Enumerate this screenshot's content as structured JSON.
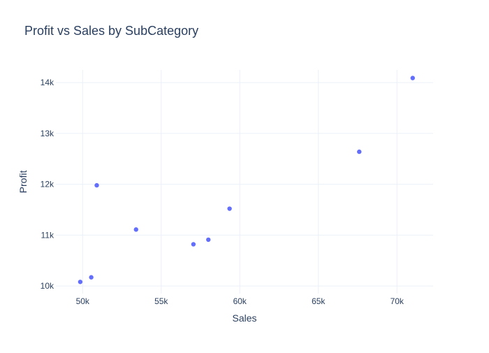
{
  "chart_data": {
    "type": "scatter",
    "title": "Profit vs Sales by SubCategory",
    "xlabel": "Sales",
    "ylabel": "Profit",
    "xlim": [
      48300,
      72300
    ],
    "ylim": [
      9850,
      14250
    ],
    "grid": true,
    "legend": "none",
    "x_ticks": [
      50000,
      55000,
      60000,
      65000,
      70000
    ],
    "x_tick_labels": [
      "50k",
      "55k",
      "60k",
      "65k",
      "70k"
    ],
    "y_ticks": [
      10000,
      11000,
      12000,
      13000,
      14000
    ],
    "y_tick_labels": [
      "10k",
      "11k",
      "12k",
      "13k",
      "14k"
    ],
    "marker_color": "#636efa",
    "points": [
      {
        "x": 49850,
        "y": 10080
      },
      {
        "x": 50550,
        "y": 10170
      },
      {
        "x": 50900,
        "y": 11980
      },
      {
        "x": 53400,
        "y": 11110
      },
      {
        "x": 57050,
        "y": 10820
      },
      {
        "x": 58000,
        "y": 10910
      },
      {
        "x": 59350,
        "y": 11520
      },
      {
        "x": 67600,
        "y": 12640
      },
      {
        "x": 71000,
        "y": 14090
      }
    ]
  }
}
